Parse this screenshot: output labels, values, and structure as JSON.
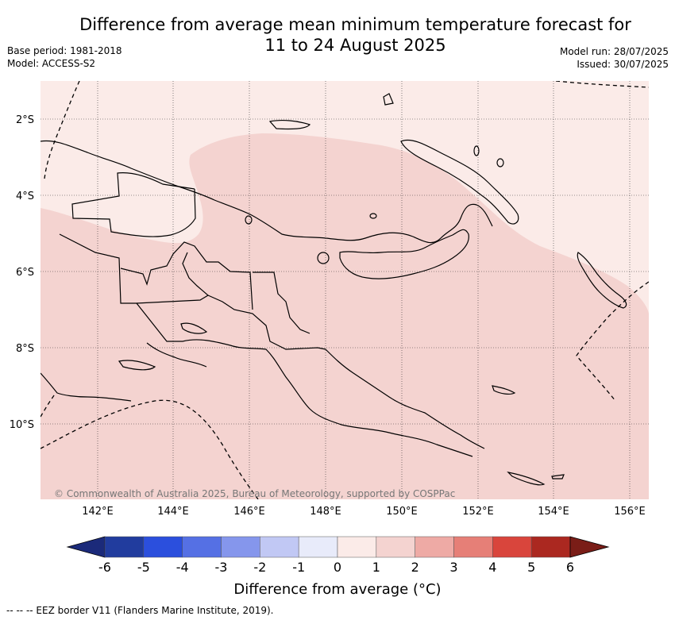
{
  "title_line1": "Difference from average mean minimum temperature forecast for",
  "title_line2": "11 to 24 August 2025",
  "base_period": "Base period: 1981-2018",
  "model": "Model: ACCESS-S2",
  "model_run": "Model run: 28/07/2025",
  "issued": "Issued: 30/07/2025",
  "lat_labels": [
    "2°S",
    "4°S",
    "6°S",
    "8°S",
    "10°S"
  ],
  "lon_labels": [
    "142°E",
    "144°E",
    "146°E",
    "148°E",
    "150°E",
    "152°E",
    "154°E",
    "156°E"
  ],
  "copyright": "© Commonwealth of Australia 2025, Bureau of Meteorology, supported by COSPPac",
  "colorbar": {
    "ticks": [
      "-6",
      "-5",
      "-4",
      "-3",
      "-2",
      "-1",
      "0",
      "1",
      "2",
      "3",
      "4",
      "5",
      "6"
    ],
    "colors": [
      "#213c9e",
      "#2b4fdd",
      "#5570e4",
      "#8596ec",
      "#c1c8f4",
      "#e8ebfa",
      "#fbebe8",
      "#f4d3d0",
      "#eeaaa5",
      "#e67f77",
      "#d9453c",
      "#ab2820"
    ],
    "under_color": "#1b2a7a",
    "over_color": "#7a1d17",
    "title": "Difference from average (°C)"
  },
  "map_fill": {
    "light": "#fbebe8",
    "medium": "#f4d3d0"
  },
  "footer": "-- -- -- EEZ border V11 (Flanders Marine Institute, 2019)."
}
